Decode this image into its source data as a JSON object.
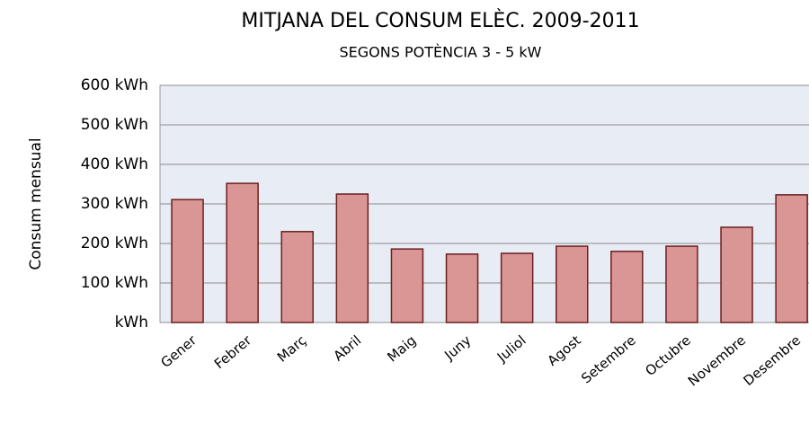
{
  "chart_data": {
    "type": "bar",
    "title": "MITJANA DEL CONSUM ELÈC. 2009-2011",
    "subtitle": "SEGONS POTÈNCIA 3 - 5 kW",
    "y_label": "Consum mensual",
    "categories": [
      "Gener",
      "Febrer",
      "Març",
      "Abril",
      "Maig",
      "Juny",
      "Juliol",
      "Agost",
      "Setembre",
      "Octubre",
      "Novembre",
      "Desembre"
    ],
    "values": [
      311,
      352,
      230,
      325,
      186,
      173,
      175,
      193,
      180,
      193,
      241,
      323
    ],
    "color": "#d99694",
    "ylim": [
      0,
      600
    ],
    "yticks": [
      {
        "value": 0,
        "label": "kWh"
      },
      {
        "value": 100,
        "label": "100 kWh"
      },
      {
        "value": 200,
        "label": "200 kWh"
      },
      {
        "value": 300,
        "label": "300 kWh"
      },
      {
        "value": 400,
        "label": "400 kWh"
      },
      {
        "value": 500,
        "label": "500 kWh"
      },
      {
        "value": 600,
        "label": "600 kWh"
      }
    ],
    "grid": true
  }
}
